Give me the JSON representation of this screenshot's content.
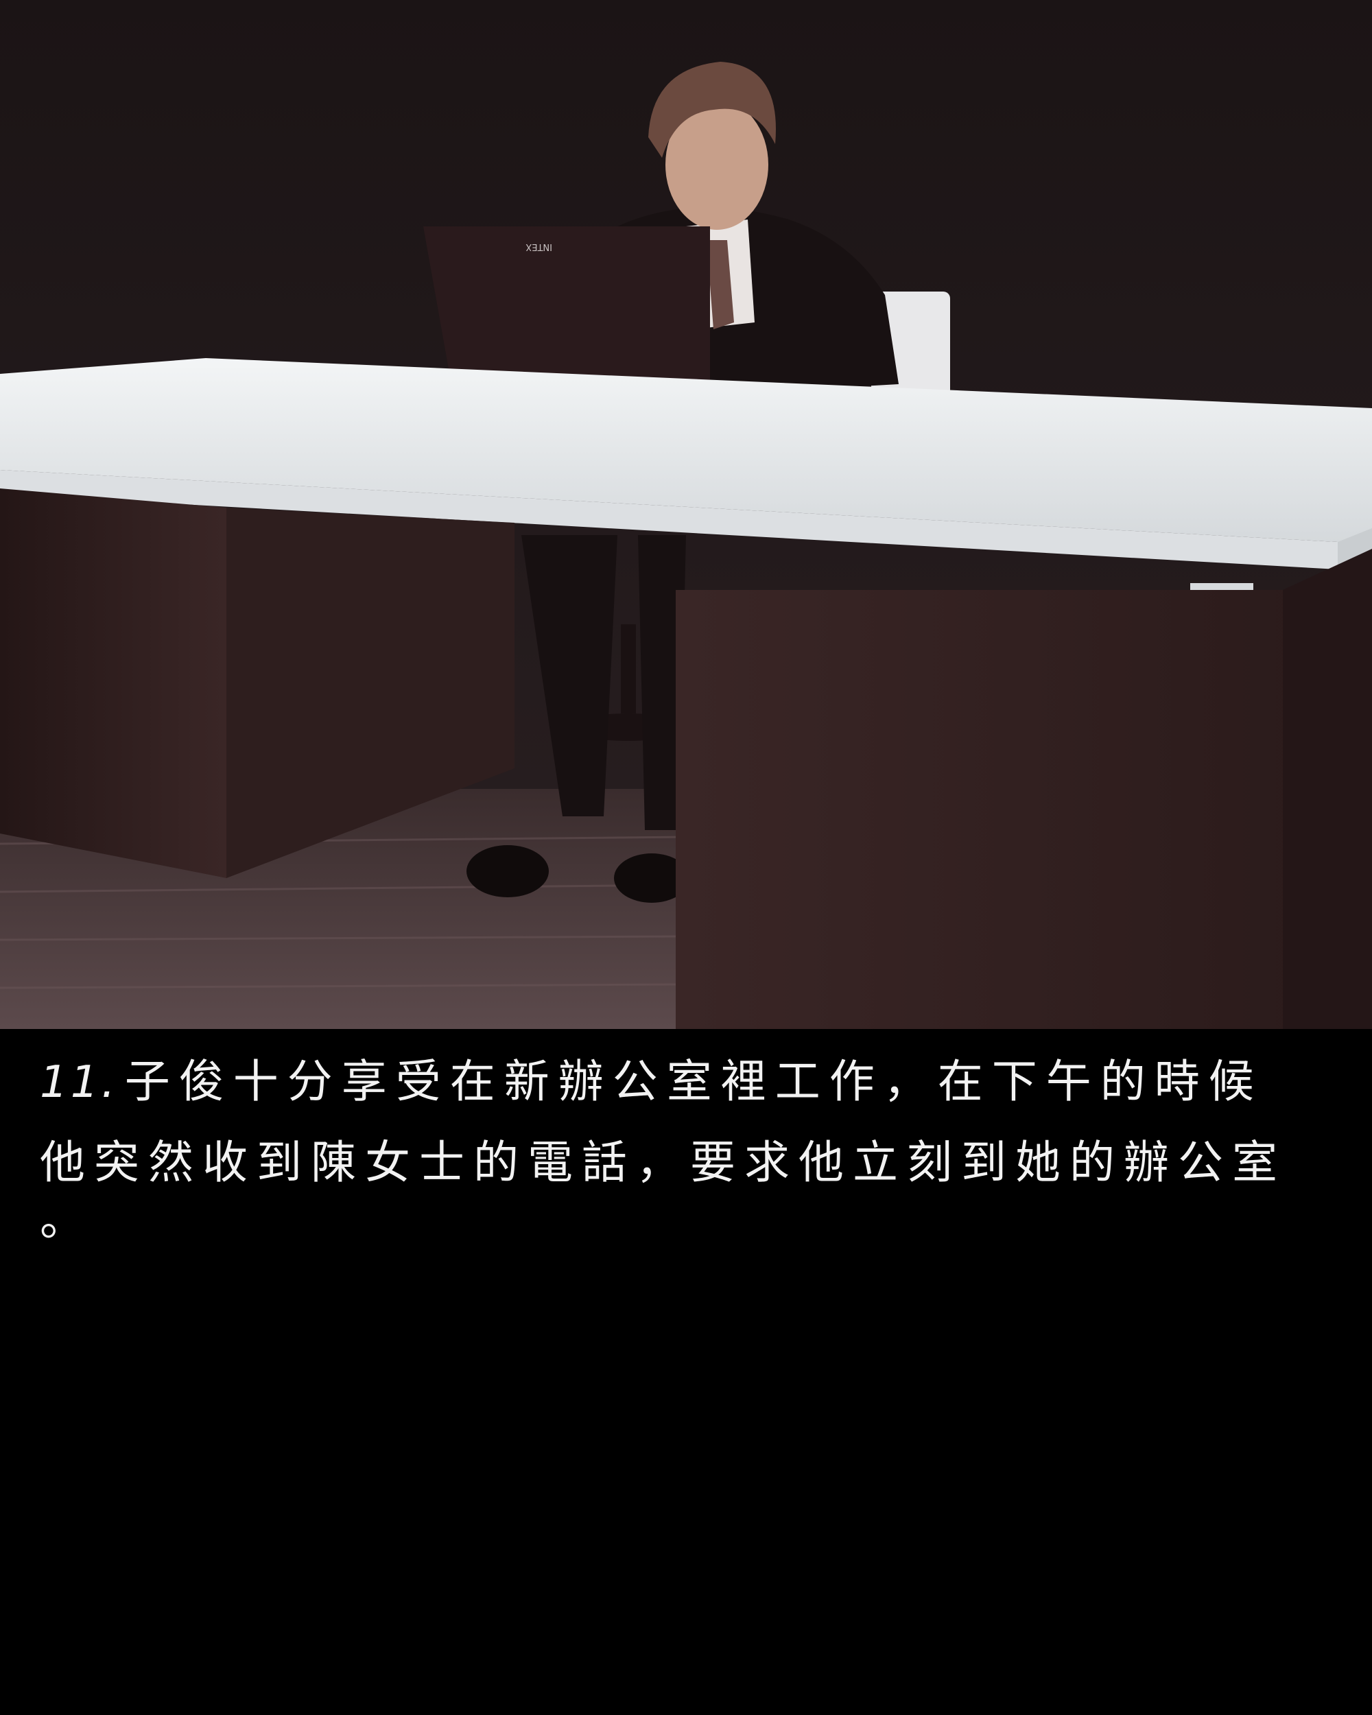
{
  "panel": {
    "laptop_brand": "INTEX"
  },
  "caption": {
    "number": "11.",
    "line1": "子俊十分享受在新辦公室裡工作，在下午的時候",
    "line2": "他突然收到陳女士的電話，要求他立刻到她的辦公室",
    "line3": "。"
  },
  "colors": {
    "background": "#000000",
    "caption_text": "#f2f2f2",
    "wall": "#231b1c",
    "desk_top": "#e7eaec",
    "desk_cabinet": "#2c1c1c",
    "floor": "#4a3a3b"
  }
}
